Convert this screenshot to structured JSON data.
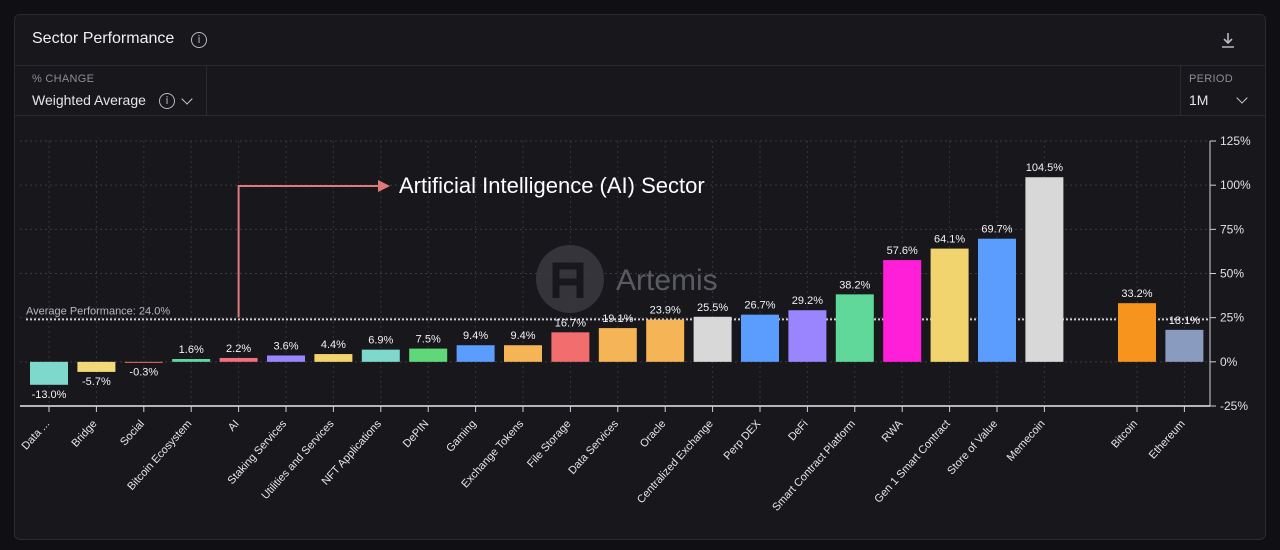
{
  "header": {
    "title": "Sector Performance",
    "info_icon": "info-icon",
    "download_icon": "download-icon"
  },
  "controls": {
    "change_label": "% CHANGE",
    "change_value": "Weighted Average",
    "period_label": "PERIOD",
    "period_value": "1M"
  },
  "watermark": {
    "text": "Artemis"
  },
  "annotation": {
    "text": "Artificial Intelligence (AI) Sector",
    "color": "#e07a7a"
  },
  "chart_data": {
    "type": "bar",
    "categories": [
      "Data ...",
      "Bridge",
      "Social",
      "Bitcoin Ecosystem",
      "AI",
      "Staking Services",
      "Utilities and Services",
      "NFT Applications",
      "DePIN",
      "Gaming",
      "Exchange Tokens",
      "File Storage",
      "Data Services",
      "Oracle",
      "Centralized Exchange",
      "Perp DEX",
      "DeFi",
      "Smart Contract Platform",
      "RWA",
      "Gen 1 Smart Contract",
      "Store of Value",
      "Memecoin",
      "Bitcoin",
      "Ethereum"
    ],
    "values": [
      -13.0,
      -5.7,
      -0.3,
      1.6,
      2.2,
      3.6,
      4.4,
      6.9,
      7.5,
      9.4,
      9.4,
      16.7,
      19.1,
      23.9,
      25.5,
      26.7,
      29.2,
      38.2,
      57.6,
      64.1,
      69.7,
      104.5,
      33.2,
      18.1
    ],
    "value_labels": [
      "-13.0%",
      "-5.7%",
      "-0.3%",
      "1.6%",
      "2.2%",
      "3.6%",
      "4.4%",
      "6.9%",
      "7.5%",
      "9.4%",
      "9.4%",
      "16.7%",
      "19.1%",
      "23.9%",
      "25.5%",
      "26.7%",
      "29.2%",
      "38.2%",
      "57.6%",
      "64.1%",
      "69.7%",
      "104.5%",
      "33.2%",
      "18.1%"
    ],
    "colors": [
      "#7fd8cc",
      "#f2d878",
      "#f06b6b",
      "#5fd89a",
      "#f26d7d",
      "#9a85ff",
      "#f2d46e",
      "#7fd8cc",
      "#5fd87a",
      "#5b9cff",
      "#f5b455",
      "#f26d6d",
      "#f5b455",
      "#f5b455",
      "#d8d8d8",
      "#5b9cff",
      "#9a85ff",
      "#5fd89a",
      "#ff1fd8",
      "#f2d46e",
      "#5b9cff",
      "#d8d8d8",
      "#f7941d",
      "#8a9bc0"
    ],
    "y_ticks": [
      "125%",
      "100%",
      "75%",
      "50%",
      "25%",
      "0%",
      "-25%"
    ],
    "y_tick_values": [
      125,
      100,
      75,
      50,
      25,
      0,
      -25
    ],
    "ylim": [
      -25,
      125
    ],
    "average": {
      "label": "Average Performance: 24.0%",
      "value": 24.0
    },
    "grid": true
  }
}
